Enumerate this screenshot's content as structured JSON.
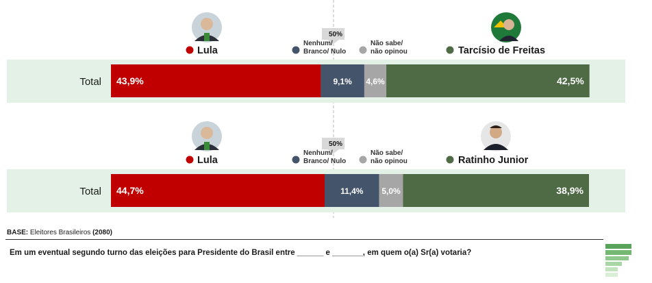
{
  "footer": {
    "base_label": "BASE:",
    "base_text": "Eleitores Brasileiros",
    "base_n": "(2080)",
    "question": "Em um eventual segundo turno das eleições para Presidente do Brasil entre ______ e _______, em quem o(a) Sr(a) votaria?"
  },
  "colors": {
    "lula": "#c00000",
    "none": "#44546a",
    "dontknow": "#a6a6a6",
    "opponent": "#4e6b45",
    "band": "#e3f1e6"
  },
  "chart_data": [
    {
      "type": "bar",
      "orientation": "horizontal-stacked",
      "categories": [
        "Total"
      ],
      "midline_label": "50%",
      "xlim": [
        0,
        100
      ],
      "series": [
        {
          "name": "Lula",
          "values": [
            43.9
          ],
          "label": "43,9%",
          "color": "#c00000"
        },
        {
          "name": "Nenhum/ Branco/ Nulo",
          "values": [
            9.1
          ],
          "label": "9,1%",
          "color": "#44546a"
        },
        {
          "name": "Não sabe/ não opinou",
          "values": [
            4.6
          ],
          "label": "4,6%",
          "color": "#a6a6a6"
        },
        {
          "name": "Tarcísio de Freitas",
          "values": [
            42.5
          ],
          "label": "42,5%",
          "color": "#4e6b45"
        }
      ]
    },
    {
      "type": "bar",
      "orientation": "horizontal-stacked",
      "categories": [
        "Total"
      ],
      "midline_label": "50%",
      "xlim": [
        0,
        100
      ],
      "series": [
        {
          "name": "Lula",
          "values": [
            44.7
          ],
          "label": "44,7%",
          "color": "#c00000"
        },
        {
          "name": "Nenhum/ Branco/ Nulo",
          "values": [
            11.4
          ],
          "label": "11,4%",
          "color": "#44546a"
        },
        {
          "name": "Não sabe/ não opinou",
          "values": [
            5.0
          ],
          "label": "5,0%",
          "color": "#a6a6a6"
        },
        {
          "name": "Ratinho Junior",
          "values": [
            38.9
          ],
          "label": "38,9%",
          "color": "#4e6b45"
        }
      ]
    }
  ]
}
